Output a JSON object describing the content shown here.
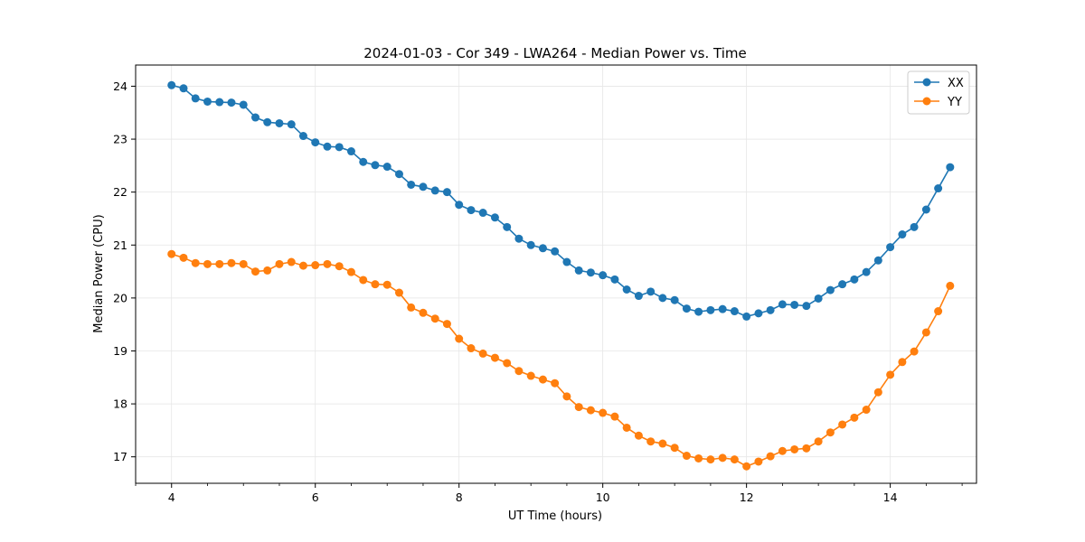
{
  "chart_data": {
    "type": "line",
    "title": "2024-01-03 - Cor 349 - LWA264 - Median Power vs. Time",
    "xlabel": "UT Time (hours)",
    "ylabel": "Median Power (CPU)",
    "xlim": [
      3.5,
      15.2
    ],
    "ylim": [
      16.5,
      24.4
    ],
    "xticks": [
      4,
      6,
      8,
      10,
      12,
      14
    ],
    "xtick_labels": [
      "4",
      "6",
      "8",
      "10",
      "12",
      "14"
    ],
    "yticks": [
      17,
      18,
      19,
      20,
      21,
      22,
      23,
      24
    ],
    "ytick_labels": [
      "17",
      "18",
      "19",
      "20",
      "21",
      "22",
      "23",
      "24"
    ],
    "grid": true,
    "legend_position": "top-right",
    "x": [
      4.0,
      4.167,
      4.333,
      4.5,
      4.667,
      4.833,
      5.0,
      5.167,
      5.333,
      5.5,
      5.667,
      5.833,
      6.0,
      6.167,
      6.333,
      6.5,
      6.667,
      6.833,
      7.0,
      7.167,
      7.333,
      7.5,
      7.667,
      7.833,
      8.0,
      8.167,
      8.333,
      8.5,
      8.667,
      8.833,
      9.0,
      9.167,
      9.333,
      9.5,
      9.667,
      9.833,
      10.0,
      10.167,
      10.333,
      10.5,
      10.667,
      10.833,
      11.0,
      11.167,
      11.333,
      11.5,
      11.667,
      11.833,
      12.0,
      12.167,
      12.333,
      12.5,
      12.667,
      12.833,
      13.0,
      13.167,
      13.333,
      13.5,
      13.667,
      13.833,
      14.0,
      14.167,
      14.333,
      14.5,
      14.667,
      14.833
    ],
    "series": [
      {
        "name": "XX",
        "color": "#1f77b4",
        "values": [
          24.02,
          23.96,
          23.77,
          23.71,
          23.7,
          23.69,
          23.65,
          23.41,
          23.32,
          23.3,
          23.28,
          23.06,
          22.94,
          22.86,
          22.85,
          22.77,
          22.57,
          22.51,
          22.48,
          22.34,
          22.14,
          22.1,
          22.03,
          22.0,
          21.76,
          21.66,
          21.61,
          21.52,
          21.34,
          21.12,
          21.0,
          20.94,
          20.88,
          20.68,
          20.52,
          20.48,
          20.43,
          20.35,
          20.16,
          20.04,
          20.12,
          20.0,
          19.96,
          19.8,
          19.74,
          19.77,
          19.79,
          19.75,
          19.65,
          19.71,
          19.77,
          19.88,
          19.87,
          19.85,
          19.99,
          20.15,
          20.26,
          20.35,
          20.49,
          20.71,
          20.96,
          21.2,
          21.34,
          21.67,
          22.07,
          22.47
        ]
      },
      {
        "name": "YY",
        "color": "#ff7f0e",
        "values": [
          20.83,
          20.76,
          20.66,
          20.64,
          20.64,
          20.66,
          20.64,
          20.5,
          20.52,
          20.64,
          20.68,
          20.61,
          20.62,
          20.64,
          20.6,
          20.49,
          20.34,
          20.26,
          20.25,
          20.1,
          19.82,
          19.72,
          19.61,
          19.51,
          19.23,
          19.05,
          18.95,
          18.87,
          18.77,
          18.62,
          18.53,
          18.46,
          18.39,
          18.14,
          17.94,
          17.88,
          17.83,
          17.76,
          17.55,
          17.4,
          17.29,
          17.25,
          17.17,
          17.02,
          16.97,
          16.95,
          16.98,
          16.95,
          16.82,
          16.91,
          17.01,
          17.11,
          17.14,
          17.16,
          17.29,
          17.46,
          17.61,
          17.74,
          17.89,
          18.22,
          18.55,
          18.79,
          18.99,
          19.35,
          19.75,
          20.23
        ]
      }
    ]
  }
}
